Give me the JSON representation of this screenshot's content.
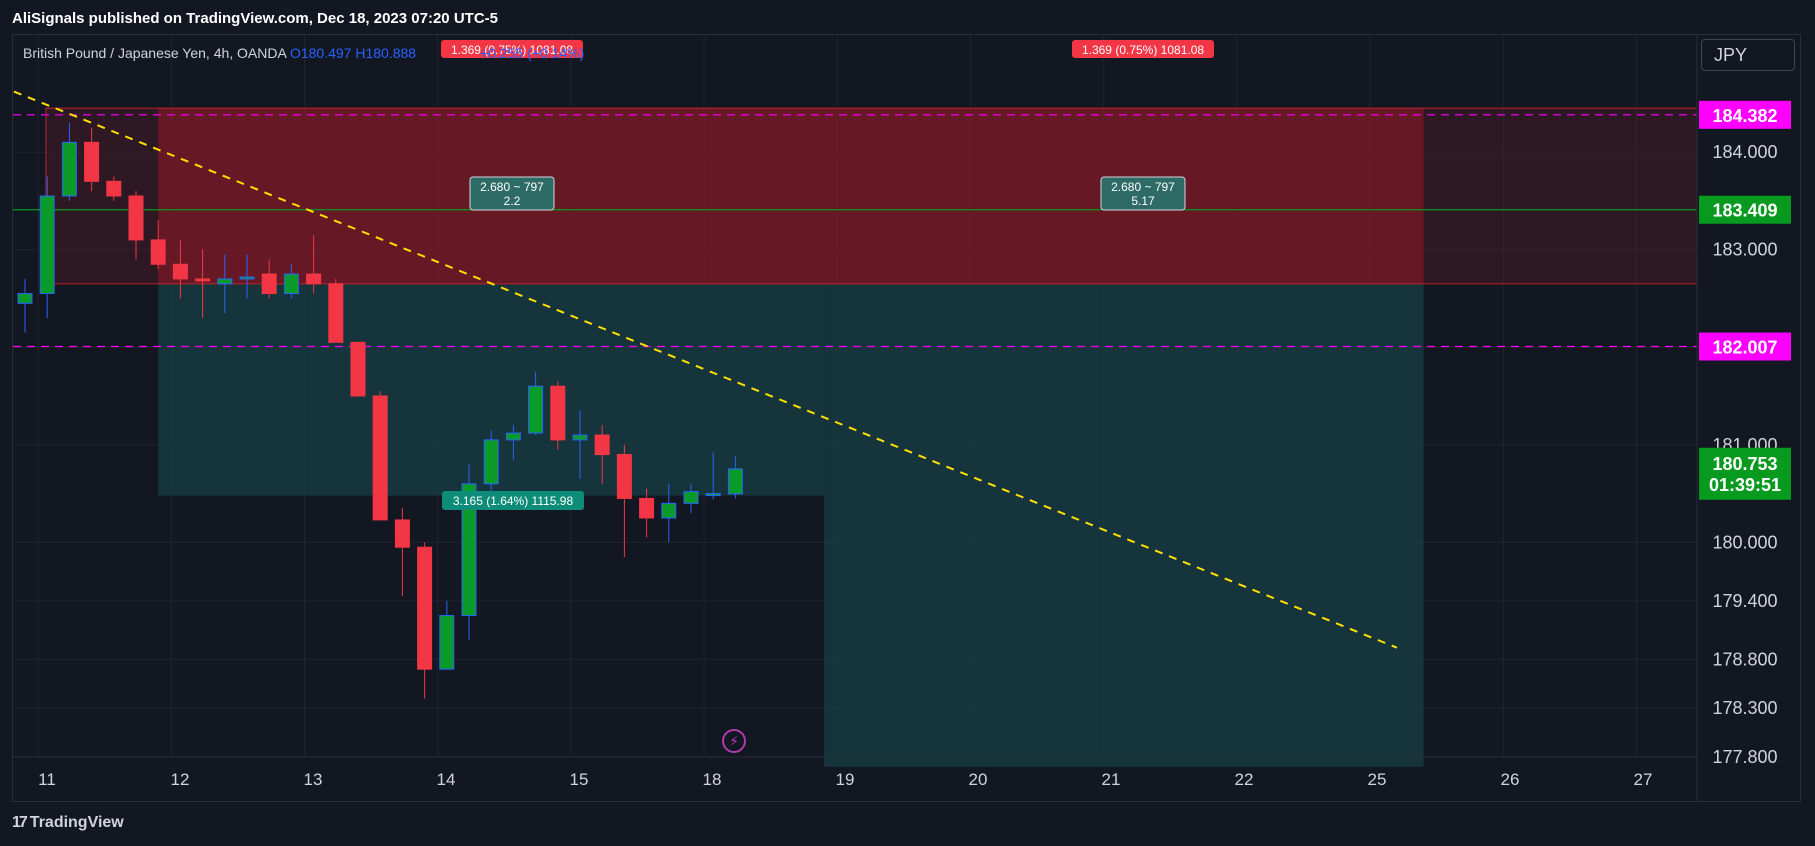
{
  "header": {
    "published": "AliSignals published on TradingView.com, Dec 18, 2023 07:20 UTC-5"
  },
  "legend": {
    "symbol": "British Pound / Japanese Yen, 4h, OANDA",
    "open": "O180.497",
    "high": "H180.888",
    "change": "+0.255 (+0.14%)"
  },
  "currency_button": "JPY",
  "footer": {
    "brand": "TradingView",
    "logo_glyph": "17"
  },
  "colors": {
    "up": "#089981",
    "up_body": "#0a9b2a",
    "down": "#f23645",
    "stop_zone": "#7a1a27",
    "target_zone": "#173a40",
    "trendline": "#ffe000",
    "magenta": "#ff00ff",
    "price_tag_green": "#089a1f"
  },
  "chart_data": {
    "type": "candlestick",
    "title": "British Pound / Japanese Yen, 4h, OANDA",
    "ylim": [
      177.8,
      185.2
    ],
    "x_ticks": [
      "11",
      "12",
      "13",
      "14",
      "15",
      "18",
      "19",
      "20",
      "21",
      "22",
      "25",
      "26",
      "27"
    ],
    "y_ticks": [
      "184.000",
      "183.000",
      "181.000",
      "180.000",
      "179.400",
      "178.800",
      "178.300",
      "177.800"
    ],
    "grid": true,
    "candles": [
      {
        "o": 182.45,
        "h": 182.7,
        "l": 182.15,
        "c": 182.55
      },
      {
        "o": 182.55,
        "h": 183.75,
        "l": 182.3,
        "c": 183.55
      },
      {
        "o": 183.55,
        "h": 184.3,
        "l": 183.5,
        "c": 184.1
      },
      {
        "o": 184.1,
        "h": 184.25,
        "l": 183.6,
        "c": 183.7
      },
      {
        "o": 183.7,
        "h": 183.75,
        "l": 183.5,
        "c": 183.55
      },
      {
        "o": 183.55,
        "h": 183.6,
        "l": 182.9,
        "c": 183.1
      },
      {
        "o": 183.1,
        "h": 183.3,
        "l": 182.8,
        "c": 182.85
      },
      {
        "o": 182.85,
        "h": 183.1,
        "l": 182.5,
        "c": 182.7
      },
      {
        "o": 182.7,
        "h": 183.0,
        "l": 182.3,
        "c": 182.68
      },
      {
        "o": 182.65,
        "h": 182.95,
        "l": 182.35,
        "c": 182.7
      },
      {
        "o": 182.7,
        "h": 182.95,
        "l": 182.5,
        "c": 182.72
      },
      {
        "o": 182.75,
        "h": 182.9,
        "l": 182.5,
        "c": 182.55
      },
      {
        "o": 182.55,
        "h": 182.85,
        "l": 182.5,
        "c": 182.75
      },
      {
        "o": 182.75,
        "h": 183.15,
        "l": 182.55,
        "c": 182.65
      },
      {
        "o": 182.65,
        "h": 182.7,
        "l": 182.05,
        "c": 182.05
      },
      {
        "o": 182.05,
        "h": 182.05,
        "l": 181.5,
        "c": 181.5
      },
      {
        "o": 181.5,
        "h": 181.55,
        "l": 180.23,
        "c": 180.23
      },
      {
        "o": 180.23,
        "h": 180.35,
        "l": 179.45,
        "c": 179.95
      },
      {
        "o": 179.95,
        "h": 180.0,
        "l": 178.4,
        "c": 178.7
      },
      {
        "o": 178.7,
        "h": 179.4,
        "l": 178.7,
        "c": 179.25
      },
      {
        "o": 179.25,
        "h": 180.8,
        "l": 179.0,
        "c": 180.6
      },
      {
        "o": 180.6,
        "h": 181.15,
        "l": 180.5,
        "c": 181.05
      },
      {
        "o": 181.05,
        "h": 181.2,
        "l": 180.85,
        "c": 181.12
      },
      {
        "o": 181.12,
        "h": 181.75,
        "l": 181.1,
        "c": 181.6
      },
      {
        "o": 181.6,
        "h": 181.65,
        "l": 180.95,
        "c": 181.05
      },
      {
        "o": 181.05,
        "h": 181.35,
        "l": 180.65,
        "c": 181.1
      },
      {
        "o": 181.1,
        "h": 181.2,
        "l": 180.6,
        "c": 180.9
      },
      {
        "o": 180.9,
        "h": 181.0,
        "l": 179.85,
        "c": 180.45
      },
      {
        "o": 180.45,
        "h": 180.55,
        "l": 180.05,
        "c": 180.25
      },
      {
        "o": 180.25,
        "h": 180.6,
        "l": 180.0,
        "c": 180.4
      },
      {
        "o": 180.4,
        "h": 180.6,
        "l": 180.3,
        "c": 180.52
      },
      {
        "o": 180.5,
        "h": 180.92,
        "l": 180.44,
        "c": 180.5
      },
      {
        "o": 180.497,
        "h": 180.888,
        "l": 180.45,
        "c": 180.753
      }
    ],
    "levels": [
      {
        "price": 184.382,
        "label": "184.382",
        "style": "dashed",
        "color": "#ff00ff"
      },
      {
        "price": 183.409,
        "label": "183.409",
        "style": "solid",
        "color": "#089a1f"
      },
      {
        "price": 182.007,
        "label": "182.007",
        "style": "dashed",
        "color": "#ff00ff"
      }
    ],
    "current": {
      "price": 180.753,
      "label": "180.753",
      "countdown": "01:39:51"
    },
    "positions": [
      {
        "entry": 182.65,
        "stop": 184.45,
        "target": 180.48,
        "from_index": 6,
        "to_index": 36,
        "stop_label": "1.369 (0.75%) 1081.08",
        "target_label": "3.165 (1.64%) 1115.98",
        "info": [
          "2.680 ~ 797",
          "2.2"
        ]
      },
      {
        "entry": 182.65,
        "stop": 184.45,
        "target": 177.7,
        "from_index": 36,
        "to_index": 63,
        "stop_label": "1.369 (0.75%) 1081.08",
        "info": [
          "2.680 ~ 797",
          "5.17"
        ]
      }
    ],
    "trendline": {
      "from": {
        "index": -0.5,
        "price": 184.62
      },
      "to": {
        "index": 61.8,
        "price": 178.92
      }
    }
  }
}
